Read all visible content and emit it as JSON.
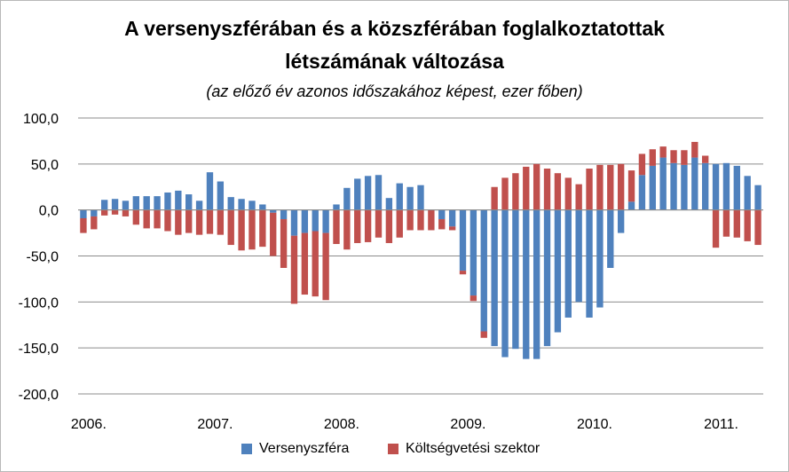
{
  "chart_data": {
    "type": "bar",
    "stacked": true,
    "title_line1": "A versenyszférában és a közszférában foglalkoztatottak",
    "title_line2": "létszámának változása",
    "subtitle": "(az előző év azonos időszakához képest, ezer főben)",
    "ylim": [
      -200,
      100
    ],
    "yticks": [
      "100,0",
      "50,0",
      "0,0",
      "-50,0",
      "-100,0",
      "-150,0",
      "-200,0"
    ],
    "ytick_values": [
      100,
      50,
      0,
      -50,
      -100,
      -150,
      -200
    ],
    "xtick_labels": [
      "2006.",
      "2007.",
      "2008.",
      "2009.",
      "2010.",
      "2011."
    ],
    "grid": true,
    "legend_position": "bottom",
    "series": [
      {
        "name": "Versenyszféra",
        "color": "#4f81bd",
        "values": [
          -9,
          -7,
          11,
          12,
          10,
          15,
          15,
          15,
          19,
          21,
          17,
          10,
          41,
          31,
          14,
          12,
          10,
          6,
          -3,
          -10,
          -28,
          -25,
          -23,
          -25,
          6,
          24,
          34,
          37,
          38,
          13,
          29,
          25,
          27,
          0,
          -10,
          -18,
          -66,
          -93,
          -132,
          -148,
          -160,
          -151,
          -162,
          -162,
          -148,
          -133,
          -117,
          -100,
          -117,
          -106,
          -63,
          -25,
          9,
          38,
          48,
          57,
          51,
          49,
          57,
          51,
          50,
          51,
          48,
          37,
          27
        ]
      },
      {
        "name": "Költségvetési szektor",
        "color": "#c0504d",
        "values": [
          -16,
          -14,
          -6,
          -5,
          -7,
          -16,
          -20,
          -20,
          -23,
          -27,
          -25,
          -27,
          -26,
          -27,
          -38,
          -44,
          -43,
          -40,
          -47,
          -53,
          -74,
          -67,
          -71,
          -73,
          -37,
          -43,
          -36,
          -35,
          -30,
          -36,
          -30,
          -22,
          -22,
          -22,
          -11,
          -4,
          -4,
          -6,
          -7,
          25,
          35,
          40,
          47,
          50,
          45,
          40,
          35,
          28,
          45,
          49,
          49,
          50,
          34,
          23,
          18,
          12,
          14,
          16,
          17,
          8,
          -41,
          -29,
          -30,
          -34,
          -38
        ]
      }
    ]
  }
}
